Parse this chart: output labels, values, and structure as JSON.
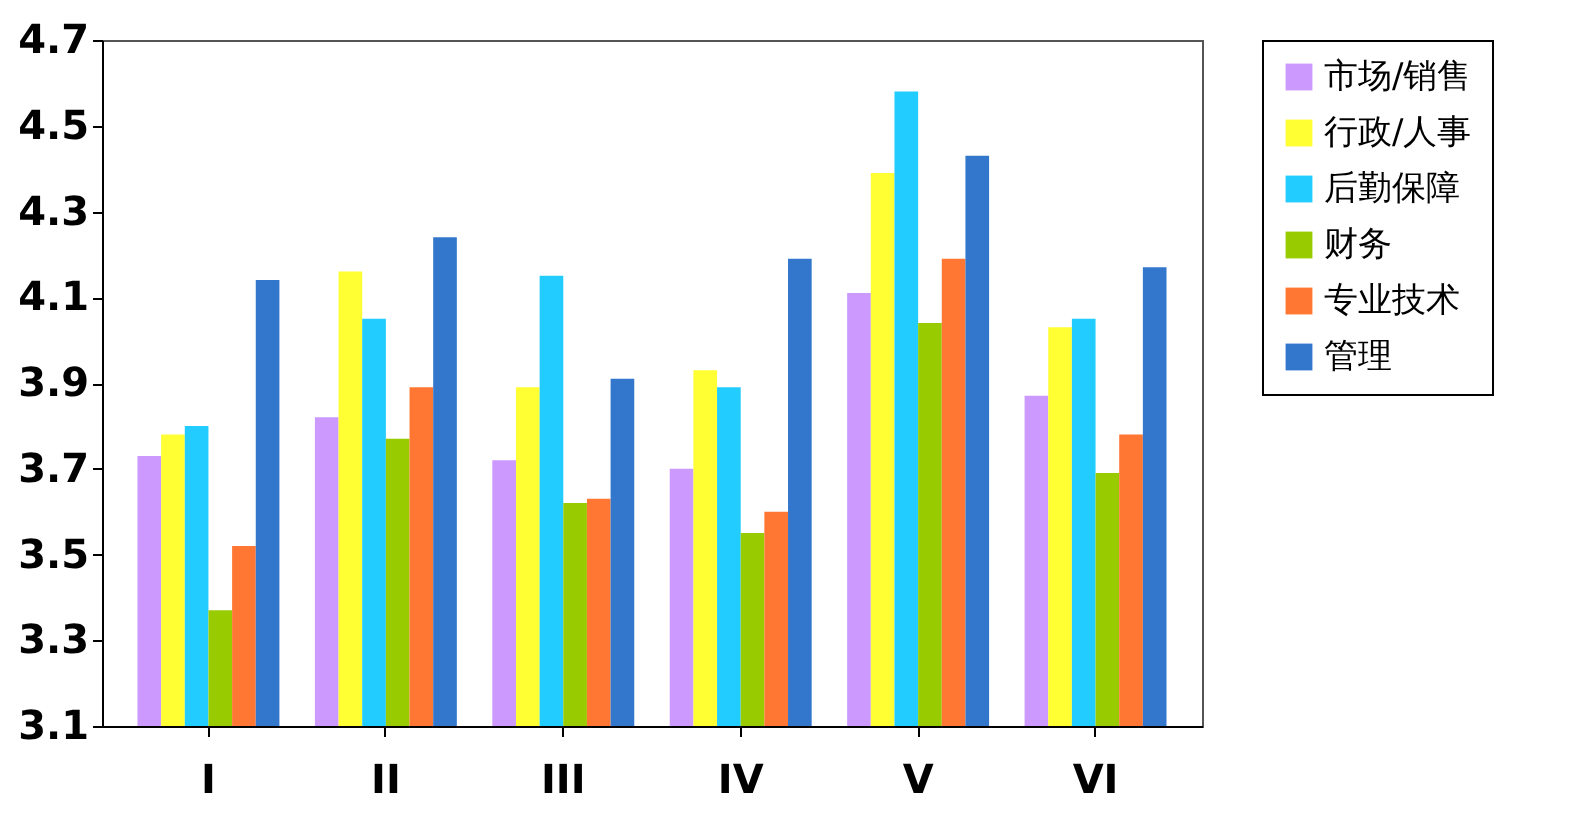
{
  "chart_data": {
    "type": "bar",
    "categories": [
      "I",
      "II",
      "III",
      "IV",
      "V",
      "VI"
    ],
    "series": [
      {
        "name": "市场/销售",
        "color": "#cc99ff",
        "values": [
          3.73,
          3.82,
          3.72,
          3.7,
          4.11,
          3.87
        ]
      },
      {
        "name": "行政/人事",
        "color": "#ffff33",
        "values": [
          3.78,
          4.16,
          3.89,
          3.93,
          4.39,
          4.03
        ]
      },
      {
        "name": "后勤保障",
        "color": "#22ccff",
        "values": [
          3.8,
          4.05,
          4.15,
          3.89,
          4.58,
          4.05
        ]
      },
      {
        "name": "财务",
        "color": "#99cc00",
        "values": [
          3.37,
          3.77,
          3.62,
          3.55,
          4.04,
          3.69
        ]
      },
      {
        "name": "专业技术",
        "color": "#ff7733",
        "values": [
          3.52,
          3.89,
          3.63,
          3.6,
          4.19,
          3.78
        ]
      },
      {
        "name": "管理",
        "color": "#3377cc",
        "values": [
          4.14,
          4.24,
          3.91,
          4.19,
          4.43,
          4.17
        ]
      }
    ],
    "ylim": [
      3.1,
      4.7
    ],
    "yticks": [
      3.1,
      3.3,
      3.5,
      3.7,
      3.9,
      4.1,
      4.3,
      4.5,
      4.7
    ],
    "grid": false,
    "legend": "right"
  }
}
